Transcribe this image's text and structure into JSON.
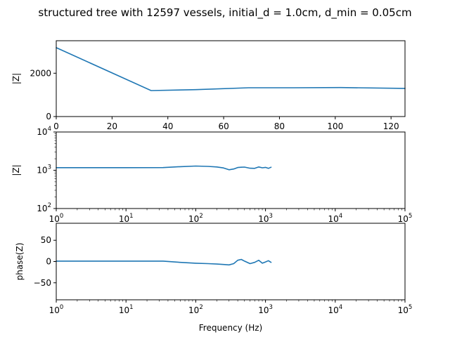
{
  "figure": {
    "title": "structured tree with 12597 vessels, initial_d = 1.0cm, d_min = 0.05cm",
    "line_color": "#1f77b4"
  },
  "chart_data": [
    {
      "type": "line",
      "ylabel": "|Z|",
      "xlabel": "",
      "xlim": [
        0,
        125
      ],
      "ylim": [
        0,
        3500
      ],
      "x_ticks": [
        "0",
        "20",
        "40",
        "60",
        "80",
        "100",
        "120"
      ],
      "y_ticks": [
        "0",
        "2000"
      ],
      "x_scale": "linear",
      "y_scale": "linear",
      "grid": false,
      "series": [
        {
          "x": [
            0,
            34,
            50,
            69,
            85,
            102,
            125
          ],
          "y": [
            3180,
            1200,
            1240,
            1330,
            1330,
            1340,
            1300
          ]
        }
      ]
    },
    {
      "type": "line",
      "ylabel": "|Z|",
      "xlabel": "",
      "x_scale": "log",
      "y_scale": "log",
      "xlim": [
        1,
        100000
      ],
      "ylim": [
        100,
        10000
      ],
      "x_tick_base": "10",
      "x_tick_exponents": [
        "0",
        "1",
        "2",
        "3",
        "4",
        "5"
      ],
      "y_tick_base": "10",
      "y_tick_exponents": [
        "2",
        "3",
        "4"
      ],
      "grid": false,
      "series": [
        {
          "x": [
            1,
            10,
            34,
            60,
            100,
            150,
            200,
            250,
            300,
            350,
            400,
            450,
            500,
            600,
            700,
            800,
            900,
            1000,
            1100,
            1200
          ],
          "y": [
            1170,
            1170,
            1175,
            1240,
            1290,
            1260,
            1220,
            1150,
            1030,
            1080,
            1180,
            1200,
            1210,
            1130,
            1120,
            1220,
            1160,
            1190,
            1120,
            1200
          ]
        }
      ]
    },
    {
      "type": "line",
      "ylabel": "phase(Z)",
      "xlabel": "Frequency (Hz)",
      "x_scale": "log",
      "y_scale": "linear",
      "xlim": [
        1,
        100000
      ],
      "ylim": [
        -90,
        90
      ],
      "x_tick_base": "10",
      "x_tick_exponents": [
        "0",
        "1",
        "2",
        "3",
        "4",
        "5"
      ],
      "y_ticks": [
        "-50",
        "0",
        "50"
      ],
      "grid": false,
      "series": [
        {
          "x": [
            1,
            10,
            34,
            60,
            100,
            150,
            200,
            250,
            300,
            350,
            400,
            450,
            500,
            600,
            700,
            800,
            900,
            1000,
            1100,
            1200
          ],
          "y": [
            1,
            1,
            1,
            -2,
            -4,
            -5,
            -6,
            -7,
            -8,
            -5,
            3,
            5,
            1,
            -5,
            -2,
            3,
            -4,
            -1,
            2,
            -2
          ]
        }
      ]
    }
  ]
}
